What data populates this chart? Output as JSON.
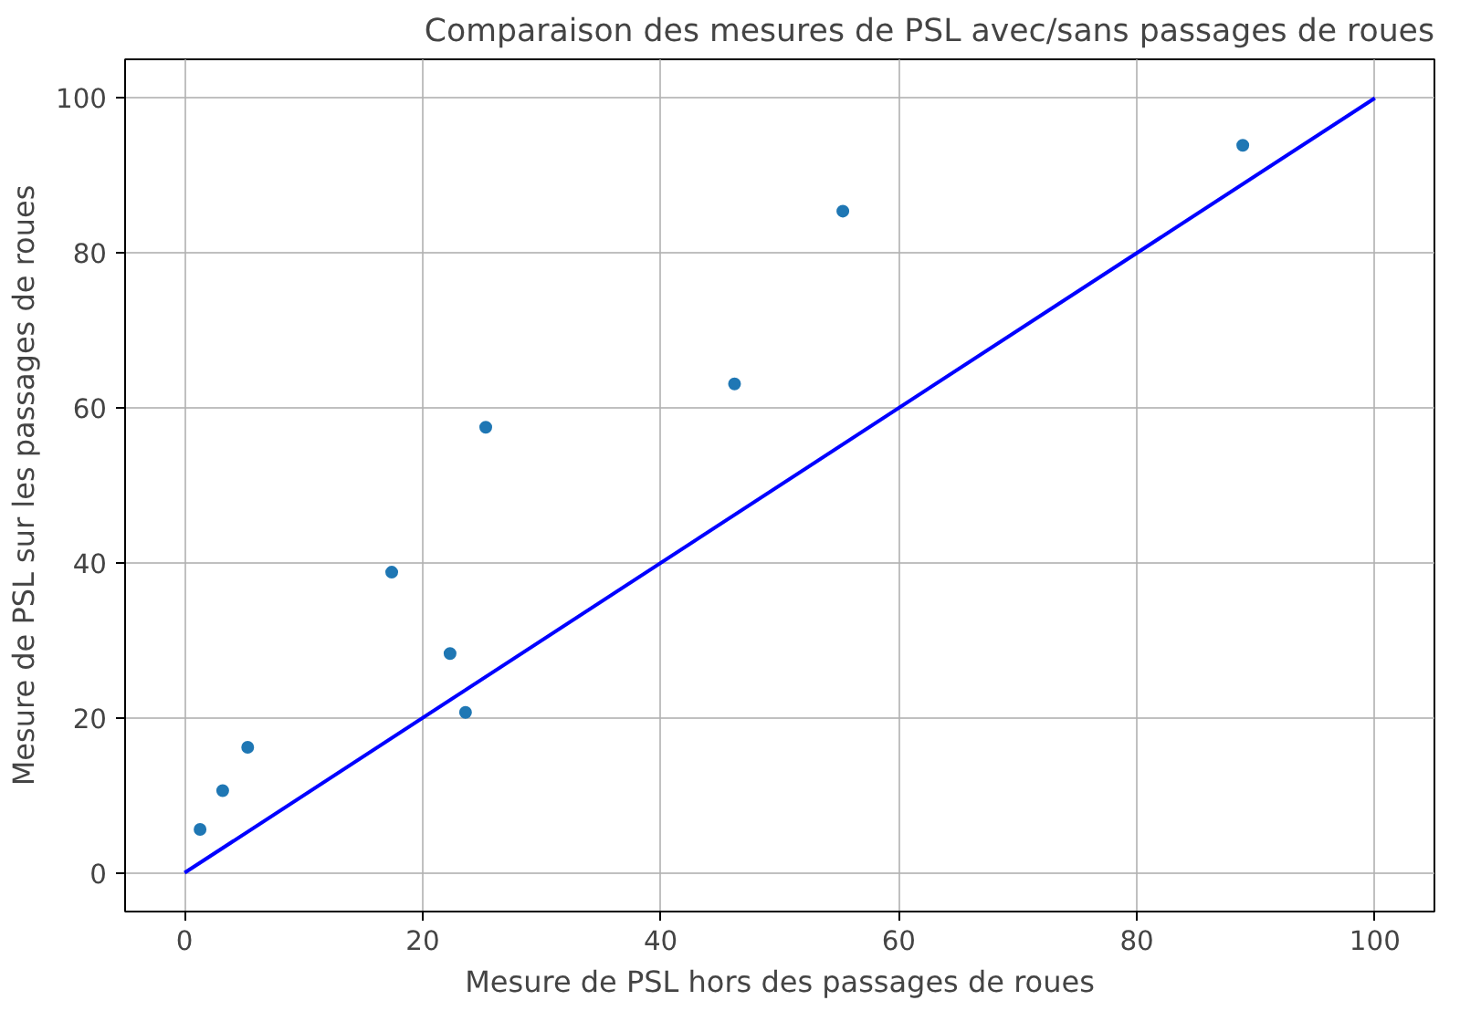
{
  "chart_data": {
    "type": "scatter",
    "title": "Comparaison des mesures de PSL avec/sans passages de roues",
    "xlabel": "Mesure de PSL hors des passages de roues",
    "ylabel": "Mesure de PSL sur les passages de roues",
    "x": [
      1.3,
      3.2,
      5.3,
      17.4,
      22.3,
      23.6,
      25.3,
      46.2,
      55.3,
      88.9
    ],
    "series": [
      {
        "color": "#1f77b4",
        "marker": "circle",
        "values": [
          5.6,
          10.6,
          16.2,
          38.8,
          28.3,
          20.7,
          57.5,
          63.1,
          85.4,
          93.9
        ]
      },
      {
        "type": "line",
        "color": "#0000ff",
        "x": [
          0,
          100
        ],
        "values": [
          0,
          100
        ]
      }
    ],
    "xlim": [
      -5,
      105
    ],
    "ylim": [
      -5,
      105
    ],
    "xticks": [
      0,
      20,
      40,
      60,
      80,
      100
    ],
    "yticks": [
      0,
      20,
      40,
      60,
      80,
      100
    ],
    "grid": true
  }
}
